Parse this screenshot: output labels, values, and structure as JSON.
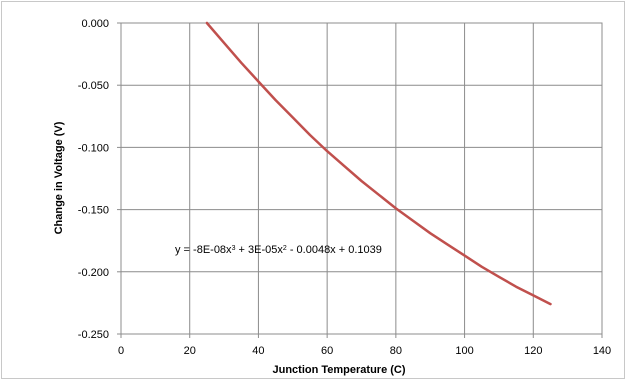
{
  "chart_data": {
    "type": "line",
    "title": "",
    "xlabel": "Junction Temperature (C)",
    "ylabel": "Change in Voltage (V)",
    "xlim": [
      0,
      140
    ],
    "ylim": [
      -0.25,
      0.0
    ],
    "xticks": [
      "0",
      "20",
      "40",
      "60",
      "80",
      "100",
      "120",
      "140"
    ],
    "yticks": [
      "0.000",
      "-0.050",
      "-0.100",
      "-0.150",
      "-0.200",
      "-0.250"
    ],
    "grid": true,
    "series": [
      {
        "color": "#c0504d",
        "x": [
          25,
          30,
          35,
          40,
          45,
          50,
          55,
          60,
          65,
          70,
          75,
          80,
          85,
          90,
          95,
          100,
          105,
          110,
          115,
          120,
          125
        ],
        "y": [
          0.0,
          -0.016,
          -0.032,
          -0.047,
          -0.062,
          -0.076,
          -0.09,
          -0.103,
          -0.115,
          -0.127,
          -0.138,
          -0.149,
          -0.159,
          -0.169,
          -0.178,
          -0.187,
          -0.196,
          -0.204,
          -0.212,
          -0.219,
          -0.226
        ]
      }
    ],
    "annotation": {
      "parts": [
        "y = -8E-08x",
        "3",
        " + 3E-05x",
        "2",
        " - 0.0048x + 0.1039"
      ]
    }
  }
}
